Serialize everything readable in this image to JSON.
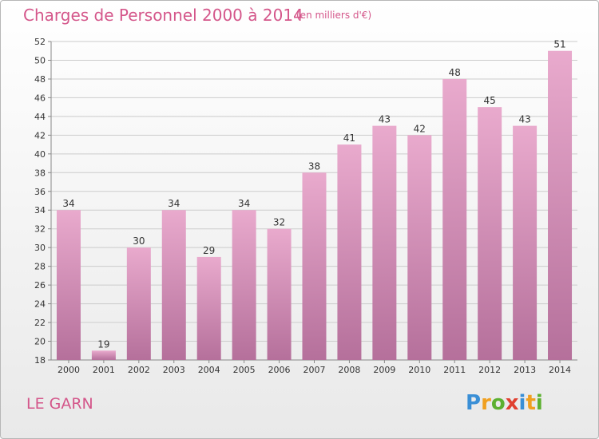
{
  "header": {
    "title": "Charges de Personnel 2000 à 2014",
    "subtitle": "(en milliers d'€)"
  },
  "footer": {
    "commune": "LE GARN",
    "brand": "Proxiti",
    "brand_letters": [
      {
        "char": "P",
        "color": "#3a8fd6"
      },
      {
        "char": "r",
        "color": "#f0a020"
      },
      {
        "char": "o",
        "color": "#5cb030"
      },
      {
        "char": "x",
        "color": "#e04030"
      },
      {
        "char": "i",
        "color": "#3a8fd6"
      },
      {
        "char": "t",
        "color": "#f0a020"
      },
      {
        "char": "i",
        "color": "#5cb030"
      }
    ]
  },
  "colors": {
    "accent": "#d4568a",
    "bar_top": "#e9aacd",
    "bar_bottom": "#b5709b",
    "grid": "#cccccc",
    "tick_text": "#333333"
  },
  "chart_data": {
    "type": "bar",
    "categories": [
      "2000",
      "2001",
      "2002",
      "2003",
      "2004",
      "2005",
      "2006",
      "2007",
      "2008",
      "2009",
      "2010",
      "2011",
      "2012",
      "2013",
      "2014"
    ],
    "values": [
      34,
      19,
      30,
      34,
      29,
      34,
      32,
      38,
      41,
      43,
      42,
      48,
      45,
      43,
      51
    ],
    "ylim": [
      18,
      52
    ],
    "yticks": [
      18,
      20,
      22,
      24,
      26,
      28,
      30,
      32,
      34,
      36,
      38,
      40,
      42,
      44,
      46,
      48,
      50,
      52
    ],
    "grid": true,
    "legend": "none",
    "data_labels": true
  }
}
